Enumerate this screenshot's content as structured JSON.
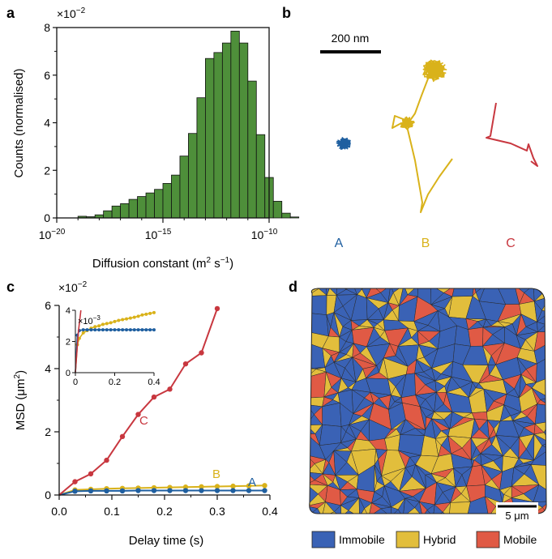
{
  "colors": {
    "histogram": "#4e8f3a",
    "A": "#1f5fa0",
    "B": "#d9b21a",
    "C": "#c8373f",
    "immobile": "#3a62b5",
    "hybrid": "#e2be3c",
    "mobile": "#e05a45"
  },
  "panels": {
    "a": "a",
    "b": "b",
    "c": "c",
    "d": "d"
  },
  "chart_data": [
    {
      "panel": "a",
      "type": "bar",
      "scale_x": "log",
      "xlim_exponent": [
        -20,
        -10
      ],
      "tick_labels_x": [
        "10",
        "10",
        "10"
      ],
      "tick_exponents_x": [
        "−20",
        "−15",
        "−10"
      ],
      "tick_labels_y": [
        "0",
        "2",
        "4",
        "6",
        "8"
      ],
      "ylim": [
        0,
        8
      ],
      "multiplier": "×10",
      "multiplier_exp": "−2",
      "xlabel": "Diffusion constant (m",
      "xlabel_sup": "2",
      "xlabel_mid": " s",
      "xlabel_sup2": "−1",
      "xlabel_end": ")",
      "ylabel": "Counts (normalised)",
      "bin_start_exponent": -19.0,
      "bin_width_exponent": 0.4,
      "values": [
        0.07,
        0.05,
        0.13,
        0.3,
        0.5,
        0.6,
        0.78,
        0.9,
        1.05,
        1.2,
        1.45,
        1.8,
        2.6,
        3.55,
        5.05,
        6.7,
        6.95,
        7.35,
        7.85,
        7.35,
        5.75,
        3.5,
        1.7,
        0.7,
        0.2,
        0.04
      ]
    },
    {
      "panel": "b",
      "type": "scatter",
      "scalebar": "200 nm",
      "labels": [
        "A",
        "B",
        "C"
      ]
    },
    {
      "panel": "c",
      "type": "line",
      "xlabel": "Delay time (s)",
      "ylabel": "MSD (μm",
      "ylabel_sup": "2",
      "ylabel_end": ")",
      "xlim": [
        0,
        0.4
      ],
      "ylim": [
        0,
        6
      ],
      "multiplier": "×10",
      "multiplier_exp": "−2",
      "tick_labels_x": [
        "0.0",
        "0.1",
        "0.2",
        "0.3",
        "0.4"
      ],
      "tick_labels_y": [
        "0",
        "2",
        "4",
        "6"
      ],
      "series": [
        {
          "name": "A",
          "x": [
            0,
            0.03,
            0.06,
            0.09,
            0.12,
            0.15,
            0.18,
            0.21,
            0.24,
            0.27,
            0.3,
            0.33,
            0.36,
            0.39
          ],
          "y": [
            0,
            0.12,
            0.13,
            0.13,
            0.13,
            0.14,
            0.14,
            0.14,
            0.14,
            0.14,
            0.14,
            0.14,
            0.14,
            0.14
          ]
        },
        {
          "name": "B",
          "x": [
            0,
            0.03,
            0.06,
            0.09,
            0.12,
            0.15,
            0.18,
            0.21,
            0.24,
            0.27,
            0.3,
            0.33,
            0.36,
            0.39
          ],
          "y": [
            0,
            0.16,
            0.18,
            0.2,
            0.21,
            0.22,
            0.23,
            0.24,
            0.25,
            0.26,
            0.27,
            0.28,
            0.29,
            0.3
          ]
        },
        {
          "name": "C",
          "x": [
            0,
            0.03,
            0.06,
            0.09,
            0.12,
            0.15,
            0.18,
            0.21,
            0.24,
            0.27,
            0.3
          ],
          "y": [
            0,
            0.42,
            0.67,
            1.1,
            1.85,
            2.55,
            3.1,
            3.35,
            4.15,
            4.5,
            5.9
          ]
        }
      ],
      "inset": {
        "xlim": [
          0,
          0.4
        ],
        "ylim": [
          0,
          4
        ],
        "multiplier": "×10",
        "multiplier_exp": "−3",
        "tick_labels_x": [
          "0",
          "0.2",
          "0.4"
        ],
        "tick_labels_y": [
          "0",
          "2",
          "4"
        ],
        "series": [
          {
            "name": "A",
            "x": [
              0,
              0.01,
              0.02,
              0.04,
              0.06,
              0.08,
              0.1,
              0.12,
              0.14,
              0.16,
              0.18,
              0.2,
              0.22,
              0.24,
              0.26,
              0.28,
              0.3,
              0.32,
              0.34,
              0.36,
              0.38,
              0.4
            ],
            "y": [
              0,
              2.4,
              2.7,
              2.75,
              2.75,
              2.75,
              2.75,
              2.75,
              2.75,
              2.75,
              2.75,
              2.75,
              2.75,
              2.75,
              2.75,
              2.75,
              2.75,
              2.75,
              2.75,
              2.75,
              2.75,
              2.75
            ]
          },
          {
            "name": "B",
            "x": [
              0,
              0.01,
              0.02,
              0.04,
              0.06,
              0.08,
              0.1,
              0.12,
              0.14,
              0.16,
              0.18,
              0.2,
              0.22,
              0.24,
              0.26,
              0.28,
              0.3,
              0.32,
              0.34,
              0.36,
              0.38,
              0.4
            ],
            "y": [
              0,
              1.8,
              2.2,
              2.55,
              2.7,
              2.85,
              2.95,
              3.0,
              3.1,
              3.15,
              3.2,
              3.28,
              3.35,
              3.4,
              3.45,
              3.5,
              3.55,
              3.62,
              3.7,
              3.75,
              3.8,
              3.85
            ]
          },
          {
            "name": "C",
            "x": [
              0,
              0.015,
              0.028
            ],
            "y": [
              0,
              2.6,
              4.0
            ]
          }
        ]
      }
    },
    {
      "panel": "d",
      "type": "heatmap",
      "scalebar": "5 μm",
      "legend": [
        "Immobile",
        "Hybrid",
        "Mobile"
      ]
    }
  ]
}
